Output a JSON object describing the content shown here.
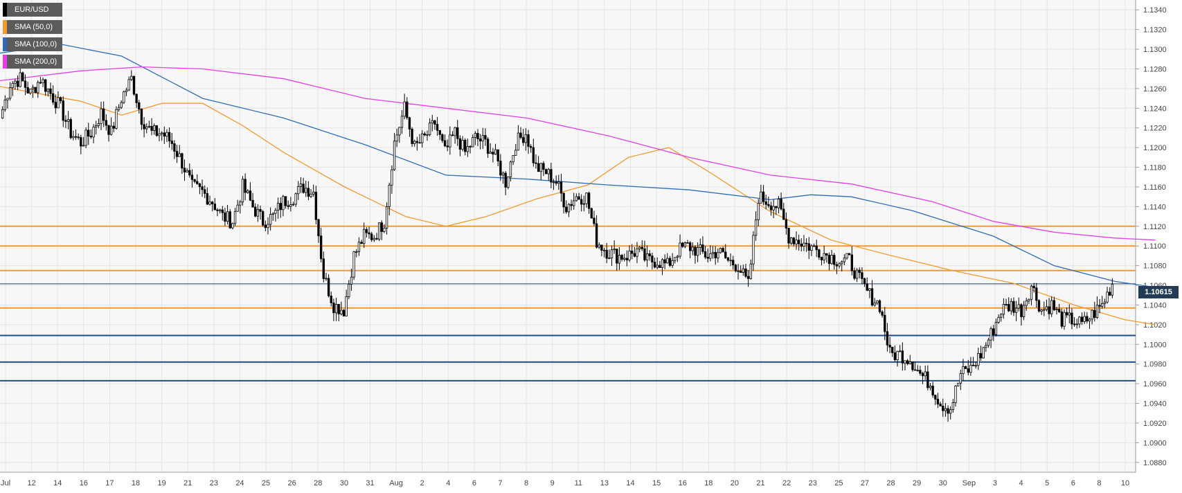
{
  "legend": {
    "items": [
      {
        "label": "EUR/USD",
        "color": "#000000"
      },
      {
        "label": "SMA (50,0)",
        "color": "#f39a2c"
      },
      {
        "label": "SMA (100,0)",
        "color": "#2e6bb5"
      },
      {
        "label": "SMA (200,0)",
        "color": "#e43fe8"
      }
    ]
  },
  "price_tag": "1.10615",
  "chart_data": {
    "type": "candlestick",
    "ylim": [
      1.087,
      1.135
    ],
    "y_ticks": [
      "1.1340",
      "1.1320",
      "1.1300",
      "1.1280",
      "1.1260",
      "1.1240",
      "1.1220",
      "1.1200",
      "1.1180",
      "1.1160",
      "1.1140",
      "1.1120",
      "1.1100",
      "1.1080",
      "1.1060",
      "1.1040",
      "1.1020",
      "1.1000",
      "1.0980",
      "1.0960",
      "1.0940",
      "1.0920",
      "1.0900",
      "1.0880"
    ],
    "x_labels": [
      "Jul",
      "12",
      "14",
      "16",
      "17",
      "18",
      "19",
      "21",
      "23",
      "24",
      "25",
      "26",
      "28",
      "30",
      "31",
      "Aug",
      "2",
      "4",
      "6",
      "7",
      "8",
      "9",
      "11",
      "13",
      "14",
      "15",
      "16",
      "18",
      "20",
      "21",
      "22",
      "23",
      "25",
      "27",
      "28",
      "29",
      "30",
      "Sep",
      "3",
      "4",
      "5",
      "6",
      "8",
      "10"
    ],
    "current_price": 1.10615,
    "horizontal_levels": {
      "resistance": [
        1.112,
        1.11,
        1.1075,
        1.1037
      ],
      "support": [
        1.1009,
        1.0982,
        1.0963
      ],
      "resistance_color": "#f39a2c",
      "support_color": "#1f4e85"
    },
    "close_path": [
      {
        "x": 0,
        "y": 1.123
      },
      {
        "x": 2,
        "y": 1.1265
      },
      {
        "x": 4,
        "y": 1.127
      },
      {
        "x": 6,
        "y": 1.1255
      },
      {
        "x": 8,
        "y": 1.127
      },
      {
        "x": 9,
        "y": 1.1255
      },
      {
        "x": 10,
        "y": 1.124
      },
      {
        "x": 11,
        "y": 1.1215
      },
      {
        "x": 12,
        "y": 1.1205
      },
      {
        "x": 13,
        "y": 1.1215
      },
      {
        "x": 14,
        "y": 1.1235
      },
      {
        "x": 15,
        "y": 1.1215
      },
      {
        "x": 16,
        "y": 1.125
      },
      {
        "x": 17,
        "y": 1.127
      },
      {
        "x": 18,
        "y": 1.123
      },
      {
        "x": 19,
        "y": 1.1215
      },
      {
        "x": 20,
        "y": 1.1215
      },
      {
        "x": 21,
        "y": 1.1205
      },
      {
        "x": 22,
        "y": 1.1185
      },
      {
        "x": 23,
        "y": 1.116
      },
      {
        "x": 24,
        "y": 1.1155
      },
      {
        "x": 25,
        "y": 1.1145
      },
      {
        "x": 26,
        "y": 1.113
      },
      {
        "x": 27,
        "y": 1.1125
      },
      {
        "x": 28,
        "y": 1.116
      },
      {
        "x": 29,
        "y": 1.114
      },
      {
        "x": 30,
        "y": 1.1125
      },
      {
        "x": 31,
        "y": 1.113
      },
      {
        "x": 32,
        "y": 1.1145
      },
      {
        "x": 33,
        "y": 1.115
      },
      {
        "x": 34,
        "y": 1.116
      },
      {
        "x": 35,
        "y": 1.1155
      },
      {
        "x": 36,
        "y": 1.107
      },
      {
        "x": 37,
        "y": 1.104
      },
      {
        "x": 38,
        "y": 1.1035
      },
      {
        "x": 39,
        "y": 1.109
      },
      {
        "x": 40,
        "y": 1.111
      },
      {
        "x": 41,
        "y": 1.111
      },
      {
        "x": 42,
        "y": 1.1125
      },
      {
        "x": 43,
        "y": 1.1205
      },
      {
        "x": 44,
        "y": 1.124
      },
      {
        "x": 45,
        "y": 1.12
      },
      {
        "x": 46,
        "y": 1.121
      },
      {
        "x": 47,
        "y": 1.1225
      },
      {
        "x": 48,
        "y": 1.1195
      },
      {
        "x": 49,
        "y": 1.1215
      },
      {
        "x": 50,
        "y": 1.1195
      },
      {
        "x": 51,
        "y": 1.121
      },
      {
        "x": 52,
        "y": 1.1205
      },
      {
        "x": 53,
        "y": 1.119
      },
      {
        "x": 54,
        "y": 1.1165
      },
      {
        "x": 55,
        "y": 1.1205
      },
      {
        "x": 56,
        "y": 1.1215
      },
      {
        "x": 57,
        "y": 1.118
      },
      {
        "x": 58,
        "y": 1.1175
      },
      {
        "x": 59,
        "y": 1.1165
      },
      {
        "x": 60,
        "y": 1.114
      },
      {
        "x": 61,
        "y": 1.115
      },
      {
        "x": 62,
        "y": 1.115
      },
      {
        "x": 63,
        "y": 1.1105
      },
      {
        "x": 64,
        "y": 1.1095
      },
      {
        "x": 65,
        "y": 1.109
      },
      {
        "x": 66,
        "y": 1.109
      },
      {
        "x": 67,
        "y": 1.1095
      },
      {
        "x": 68,
        "y": 1.1085
      },
      {
        "x": 69,
        "y": 1.1085
      },
      {
        "x": 70,
        "y": 1.108
      },
      {
        "x": 71,
        "y": 1.1095
      },
      {
        "x": 72,
        "y": 1.11
      },
      {
        "x": 73,
        "y": 1.1095
      },
      {
        "x": 74,
        "y": 1.109
      },
      {
        "x": 75,
        "y": 1.1095
      },
      {
        "x": 76,
        "y": 1.1085
      },
      {
        "x": 77,
        "y": 1.108
      },
      {
        "x": 78,
        "y": 1.106
      },
      {
        "x": 79,
        "y": 1.115
      },
      {
        "x": 80,
        "y": 1.1145
      },
      {
        "x": 81,
        "y": 1.114
      },
      {
        "x": 82,
        "y": 1.111
      },
      {
        "x": 83,
        "y": 1.1105
      },
      {
        "x": 84,
        "y": 1.11
      },
      {
        "x": 85,
        "y": 1.1095
      },
      {
        "x": 86,
        "y": 1.109
      },
      {
        "x": 87,
        "y": 1.1085
      },
      {
        "x": 88,
        "y": 1.1085
      },
      {
        "x": 89,
        "y": 1.1065
      },
      {
        "x": 90,
        "y": 1.105
      },
      {
        "x": 91,
        "y": 1.104
      },
      {
        "x": 92,
        "y": 1.099
      },
      {
        "x": 93,
        "y": 1.099
      },
      {
        "x": 94,
        "y": 1.0985
      },
      {
        "x": 95,
        "y": 1.097
      },
      {
        "x": 96,
        "y": 1.096
      },
      {
        "x": 97,
        "y": 1.094
      },
      {
        "x": 98,
        "y": 1.0935
      },
      {
        "x": 99,
        "y": 1.097
      },
      {
        "x": 100,
        "y": 1.0975
      },
      {
        "x": 101,
        "y": 1.099
      },
      {
        "x": 102,
        "y": 1.101
      },
      {
        "x": 103,
        "y": 1.1035
      },
      {
        "x": 104,
        "y": 1.104
      },
      {
        "x": 105,
        "y": 1.1035
      },
      {
        "x": 106,
        "y": 1.106
      },
      {
        "x": 107,
        "y": 1.1035
      },
      {
        "x": 108,
        "y": 1.104
      },
      {
        "x": 109,
        "y": 1.1025
      },
      {
        "x": 110,
        "y": 1.1025
      },
      {
        "x": 111,
        "y": 1.102
      },
      {
        "x": 112,
        "y": 1.103
      },
      {
        "x": 113,
        "y": 1.104
      },
      {
        "x": 114,
        "y": 1.1062
      }
    ],
    "series": [
      {
        "name": "SMA (50,0)",
        "color": "#f39a2c",
        "points": [
          {
            "x": 0,
            "y": 1.1262
          },
          {
            "x": 8,
            "y": 1.1247
          },
          {
            "x": 12,
            "y": 1.1233
          },
          {
            "x": 16,
            "y": 1.1245
          },
          {
            "x": 20,
            "y": 1.1245
          },
          {
            "x": 24,
            "y": 1.1222
          },
          {
            "x": 28,
            "y": 1.1195
          },
          {
            "x": 34,
            "y": 1.116
          },
          {
            "x": 40,
            "y": 1.113
          },
          {
            "x": 44,
            "y": 1.112
          },
          {
            "x": 48,
            "y": 1.113
          },
          {
            "x": 53,
            "y": 1.1148
          },
          {
            "x": 58,
            "y": 1.1162
          },
          {
            "x": 62,
            "y": 1.119
          },
          {
            "x": 66,
            "y": 1.12
          },
          {
            "x": 70,
            "y": 1.1175
          },
          {
            "x": 76,
            "y": 1.1135
          },
          {
            "x": 82,
            "y": 1.1106
          },
          {
            "x": 88,
            "y": 1.109
          },
          {
            "x": 94,
            "y": 1.1075
          },
          {
            "x": 100,
            "y": 1.1062
          },
          {
            "x": 106,
            "y": 1.104
          },
          {
            "x": 111,
            "y": 1.1025
          },
          {
            "x": 114,
            "y": 1.102
          }
        ]
      },
      {
        "name": "SMA (100,0)",
        "color": "#2e6bb5",
        "points": [
          {
            "x": 0,
            "y": 1.1296
          },
          {
            "x": 6,
            "y": 1.1305
          },
          {
            "x": 12,
            "y": 1.1293
          },
          {
            "x": 20,
            "y": 1.125
          },
          {
            "x": 28,
            "y": 1.123
          },
          {
            "x": 36,
            "y": 1.1203
          },
          {
            "x": 44,
            "y": 1.1172
          },
          {
            "x": 52,
            "y": 1.1168
          },
          {
            "x": 60,
            "y": 1.1162
          },
          {
            "x": 68,
            "y": 1.1157
          },
          {
            "x": 76,
            "y": 1.1147
          },
          {
            "x": 80,
            "y": 1.1152
          },
          {
            "x": 84,
            "y": 1.115
          },
          {
            "x": 90,
            "y": 1.1136
          },
          {
            "x": 98,
            "y": 1.111
          },
          {
            "x": 104,
            "y": 1.108
          },
          {
            "x": 110,
            "y": 1.1064
          },
          {
            "x": 114,
            "y": 1.1058
          }
        ]
      },
      {
        "name": "SMA (200,0)",
        "color": "#e43fe8",
        "points": [
          {
            "x": 0,
            "y": 1.1268
          },
          {
            "x": 8,
            "y": 1.1278
          },
          {
            "x": 14,
            "y": 1.1282
          },
          {
            "x": 20,
            "y": 1.128
          },
          {
            "x": 28,
            "y": 1.127
          },
          {
            "x": 36,
            "y": 1.125
          },
          {
            "x": 44,
            "y": 1.124
          },
          {
            "x": 52,
            "y": 1.123
          },
          {
            "x": 60,
            "y": 1.1212
          },
          {
            "x": 68,
            "y": 1.119
          },
          {
            "x": 76,
            "y": 1.1172
          },
          {
            "x": 84,
            "y": 1.1163
          },
          {
            "x": 92,
            "y": 1.1145
          },
          {
            "x": 98,
            "y": 1.1125
          },
          {
            "x": 104,
            "y": 1.1114
          },
          {
            "x": 110,
            "y": 1.1108
          },
          {
            "x": 114,
            "y": 1.1106
          }
        ]
      }
    ],
    "grid": true
  }
}
